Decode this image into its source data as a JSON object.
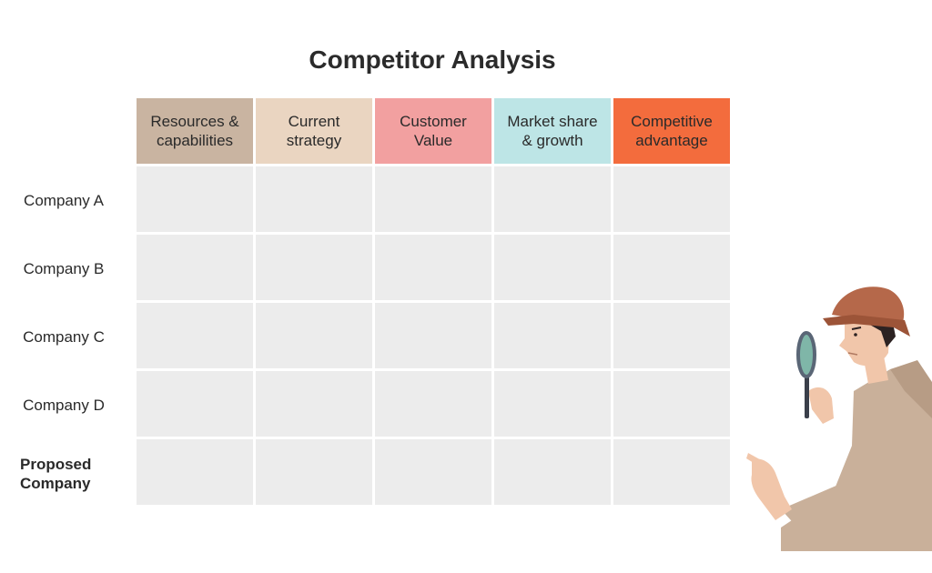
{
  "title": "Competitor Analysis",
  "columns": [
    {
      "label_lines": [
        "Resources &",
        "capabilities"
      ],
      "color": "#c9b4a1"
    },
    {
      "label_lines": [
        "Current",
        "strategy"
      ],
      "color": "#ead5c1"
    },
    {
      "label_lines": [
        "Customer",
        "Value"
      ],
      "color": "#f2a0a0"
    },
    {
      "label_lines": [
        "Market share",
        "& growth"
      ],
      "color": "#bde5e6"
    },
    {
      "label_lines": [
        "Competitive",
        "advantage"
      ],
      "color": "#f36c3d"
    }
  ],
  "rows": [
    {
      "label_lines": [
        "Company A"
      ],
      "bold": false
    },
    {
      "label_lines": [
        "Company B"
      ],
      "bold": false
    },
    {
      "label_lines": [
        "Company C"
      ],
      "bold": false
    },
    {
      "label_lines": [
        "Company D"
      ],
      "bold": false
    },
    {
      "label_lines": [
        "Proposed",
        "Company"
      ],
      "bold": true
    }
  ],
  "cell_color": "#ececec",
  "illustration": "detective-with-magnifying-glass-icon"
}
